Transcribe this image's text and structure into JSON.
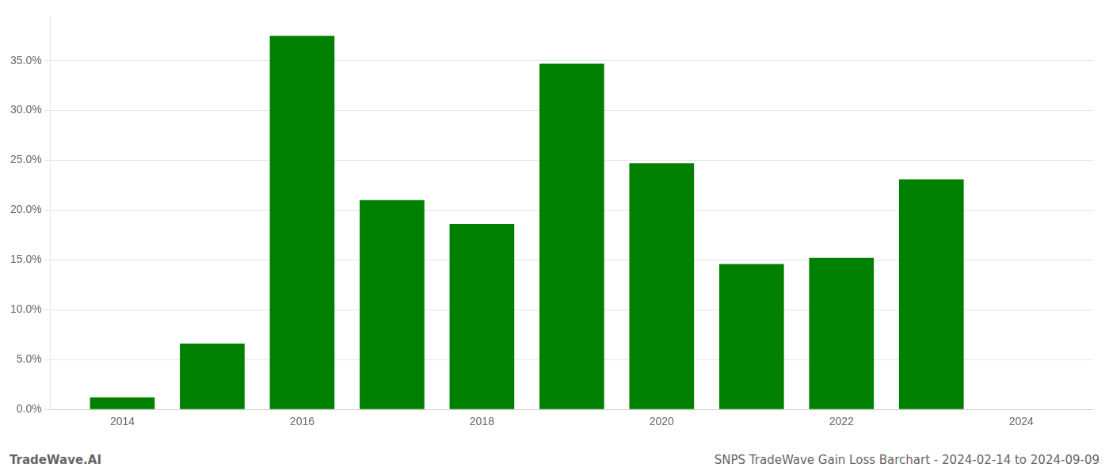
{
  "chart_data": {
    "type": "bar",
    "x": [
      2014,
      2015,
      2016,
      2017,
      2018,
      2019,
      2020,
      2021,
      2022,
      2023,
      2024
    ],
    "values": [
      0.012,
      0.066,
      0.375,
      0.21,
      0.186,
      0.347,
      0.247,
      0.146,
      0.152,
      0.231,
      0.0
    ],
    "color": "#008000",
    "xlim": [
      2013.2,
      2024.8
    ],
    "xticks": [
      2014,
      2016,
      2018,
      2020,
      2022,
      2024
    ],
    "ylim": [
      0,
      0.395
    ],
    "yticks": [
      {
        "value": 0.0,
        "label": "0.0%"
      },
      {
        "value": 0.05,
        "label": "5.0%"
      },
      {
        "value": 0.1,
        "label": "10.0%"
      },
      {
        "value": 0.15,
        "label": "15.0%"
      },
      {
        "value": 0.2,
        "label": "20.0%"
      },
      {
        "value": 0.25,
        "label": "25.0%"
      },
      {
        "value": 0.3,
        "label": "30.0%"
      },
      {
        "value": 0.35,
        "label": "35.0%"
      }
    ],
    "grid": "y",
    "annotations": [
      "TradeWave.AI",
      "SNPS TradeWave Gain Loss Barchart - 2024-02-14 to 2024-09-09"
    ]
  }
}
